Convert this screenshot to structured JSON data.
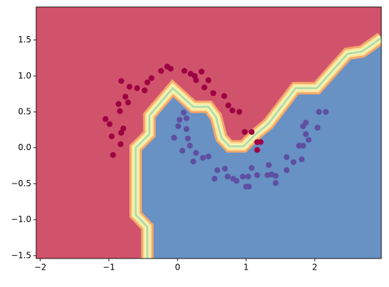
{
  "chart_data": {
    "type": "scatter",
    "xlim": [
      -2.06,
      2.97
    ],
    "ylim": [
      -1.54,
      1.96
    ],
    "xticks": [
      {
        "value": -2,
        "label": "−2"
      },
      {
        "value": -1,
        "label": "−1"
      },
      0,
      1,
      2
    ],
    "yticks": [
      {
        "value": -1.5,
        "label": "−1.5"
      },
      {
        "value": -1,
        "label": "−1.0"
      },
      {
        "value": -0.5,
        "label": "−0.5"
      },
      {
        "value": 0,
        "label": "0.0"
      },
      0.5,
      {
        "value": 1,
        "label": "1.0"
      },
      1.5
    ],
    "region_colors": [
      "#d0536b",
      "#6891c4"
    ],
    "band_colors": [
      "#f4a66a",
      "#fbe49a",
      "#f3f6b8",
      "#b3dba6"
    ],
    "decision_boundary": {
      "x": [
        -0.44,
        -0.44,
        -0.61,
        -0.61,
        -0.41,
        -0.41,
        -0.07,
        0.23,
        0.45,
        0.56,
        0.64,
        0.76,
        0.96,
        1.14,
        1.32,
        1.72,
        2.03,
        2.48,
        2.69,
        2.97
      ],
      "y": [
        -1.54,
        -1.1,
        -0.93,
        0.0,
        0.19,
        0.45,
        0.83,
        0.57,
        0.57,
        0.43,
        0.14,
        0.02,
        0.02,
        0.19,
        0.33,
        0.83,
        0.83,
        1.31,
        1.34,
        1.53
      ]
    },
    "series": [
      {
        "color": "#9e0142",
        "x": [
          -0.15,
          -0.1,
          -0.24,
          -0.38,
          -0.44,
          -0.48,
          -0.59,
          -0.7,
          -0.82,
          -0.76,
          -0.72,
          -0.86,
          -0.84,
          -1.05,
          -0.99,
          -0.79,
          -0.82,
          -0.96,
          -0.83,
          -0.94,
          0.1,
          0.19,
          0.25,
          0.35,
          0.27,
          0.39,
          0.45,
          0.52,
          0.68,
          0.74,
          0.8,
          0.9,
          0.98,
          1.08,
          1.16,
          1.21,
          1.16
        ],
        "values": [
          1.13,
          1.1,
          1.07,
          0.97,
          0.91,
          0.8,
          0.83,
          0.85,
          0.93,
          0.71,
          0.63,
          0.61,
          0.51,
          0.4,
          0.33,
          0.27,
          0.21,
          0.16,
          0.05,
          -0.1,
          1.07,
          1.03,
          1.0,
          1.06,
          0.94,
          0.84,
          0.94,
          0.76,
          0.72,
          0.59,
          0.52,
          0.5,
          0.22,
          0.22,
          0.08,
          0.08,
          -0.03
        ]
      },
      {
        "color": "#5e4fa2",
        "x": [
          0.09,
          0.03,
          0.13,
          0.01,
          -0.05,
          0.13,
          0.15,
          0.07,
          0.18,
          0.23,
          0.27,
          0.37,
          0.45,
          0.58,
          0.54,
          0.73,
          0.81,
          0.86,
          0.95,
          1.0,
          1.04,
          1.03,
          1.08,
          1.16,
          1.31,
          1.37,
          1.33,
          1.43,
          1.43,
          1.59,
          1.59,
          1.69,
          1.81,
          1.77,
          1.83,
          1.83,
          1.87,
          1.87,
          2.04,
          2.06,
          2.16,
          1.91,
          0.69
        ],
        "values": [
          0.49,
          0.39,
          0.41,
          0.3,
          0.14,
          0.26,
          0.13,
          -0.04,
          0.03,
          -0.19,
          -0.07,
          -0.14,
          -0.12,
          -0.31,
          -0.43,
          -0.4,
          -0.43,
          -0.46,
          -0.4,
          -0.54,
          -0.54,
          -0.4,
          -0.28,
          -0.38,
          -0.38,
          -0.37,
          -0.24,
          -0.39,
          -0.49,
          -0.13,
          -0.31,
          -0.2,
          -0.16,
          0.03,
          0.03,
          0.3,
          0.35,
          0.19,
          0.28,
          0.5,
          0.5,
          0.11,
          -0.29
        ]
      }
    ]
  }
}
